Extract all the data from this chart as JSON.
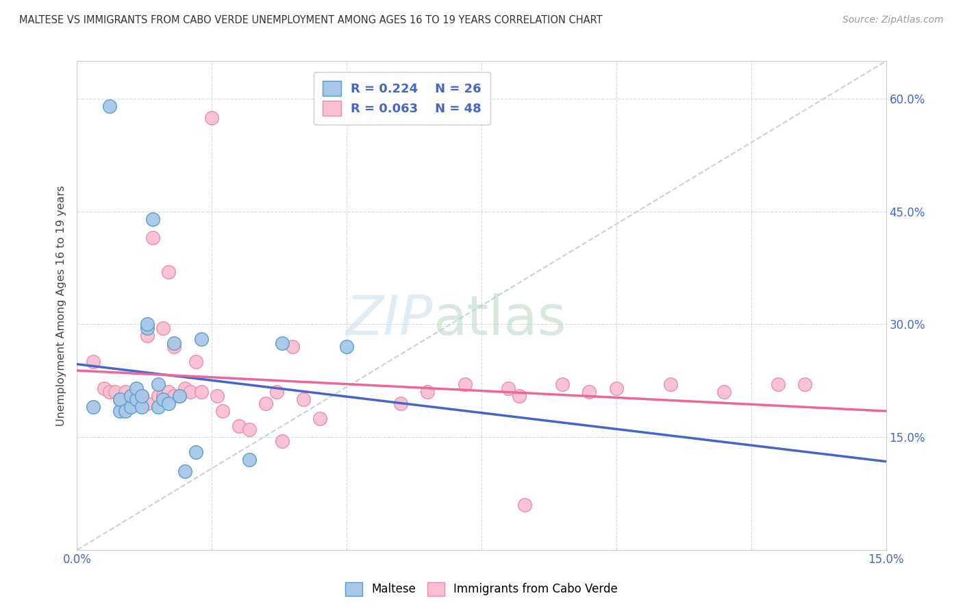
{
  "title": "MALTESE VS IMMIGRANTS FROM CABO VERDE UNEMPLOYMENT AMONG AGES 16 TO 19 YEARS CORRELATION CHART",
  "source": "Source: ZipAtlas.com",
  "ylabel": "Unemployment Among Ages 16 to 19 years",
  "xlim": [
    0.0,
    0.15
  ],
  "ylim": [
    0.0,
    0.65
  ],
  "xtick_positions": [
    0.0,
    0.025,
    0.05,
    0.075,
    0.1,
    0.125,
    0.15
  ],
  "xtick_labels": [
    "0.0%",
    "",
    "",
    "",
    "",
    "",
    "15.0%"
  ],
  "ytick_positions": [
    0.15,
    0.3,
    0.45,
    0.6
  ],
  "ytick_labels": [
    "15.0%",
    "30.0%",
    "45.0%",
    "60.0%"
  ],
  "maltese_color": "#a8c8e8",
  "maltese_edge": "#5599cc",
  "cabo_verde_color": "#f8c0d0",
  "cabo_verde_edge": "#ee88aa",
  "regression_blue": "#4466cc",
  "regression_pink": "#ee6699",
  "diagonal_color": "#b8ccd8",
  "legend_r1": "R = 0.224",
  "legend_n1": "N = 26",
  "legend_r2": "R = 0.063",
  "legend_n2": "N = 48",
  "maltese_x": [
    0.003,
    0.006,
    0.008,
    0.008,
    0.009,
    0.01,
    0.01,
    0.011,
    0.011,
    0.012,
    0.012,
    0.013,
    0.013,
    0.014,
    0.015,
    0.015,
    0.016,
    0.017,
    0.018,
    0.019,
    0.02,
    0.022,
    0.023,
    0.032,
    0.038,
    0.05
  ],
  "maltese_y": [
    0.19,
    0.59,
    0.185,
    0.2,
    0.185,
    0.19,
    0.205,
    0.2,
    0.215,
    0.19,
    0.205,
    0.295,
    0.3,
    0.44,
    0.19,
    0.22,
    0.2,
    0.195,
    0.275,
    0.205,
    0.105,
    0.13,
    0.28,
    0.12,
    0.275,
    0.27
  ],
  "cabo_verde_x": [
    0.003,
    0.005,
    0.006,
    0.007,
    0.008,
    0.009,
    0.01,
    0.011,
    0.012,
    0.013,
    0.013,
    0.014,
    0.015,
    0.016,
    0.016,
    0.017,
    0.017,
    0.018,
    0.018,
    0.019,
    0.02,
    0.021,
    0.022,
    0.023,
    0.025,
    0.026,
    0.027,
    0.03,
    0.032,
    0.035,
    0.037,
    0.038,
    0.04,
    0.042,
    0.045,
    0.06,
    0.065,
    0.072,
    0.08,
    0.082,
    0.083,
    0.09,
    0.095,
    0.1,
    0.11,
    0.12,
    0.13,
    0.135
  ],
  "cabo_verde_y": [
    0.25,
    0.215,
    0.21,
    0.21,
    0.2,
    0.21,
    0.205,
    0.2,
    0.205,
    0.195,
    0.285,
    0.415,
    0.205,
    0.205,
    0.295,
    0.37,
    0.21,
    0.205,
    0.27,
    0.205,
    0.215,
    0.21,
    0.25,
    0.21,
    0.575,
    0.205,
    0.185,
    0.165,
    0.16,
    0.195,
    0.21,
    0.145,
    0.27,
    0.2,
    0.175,
    0.195,
    0.21,
    0.22,
    0.215,
    0.205,
    0.06,
    0.22,
    0.21,
    0.215,
    0.22,
    0.21,
    0.22,
    0.22
  ]
}
